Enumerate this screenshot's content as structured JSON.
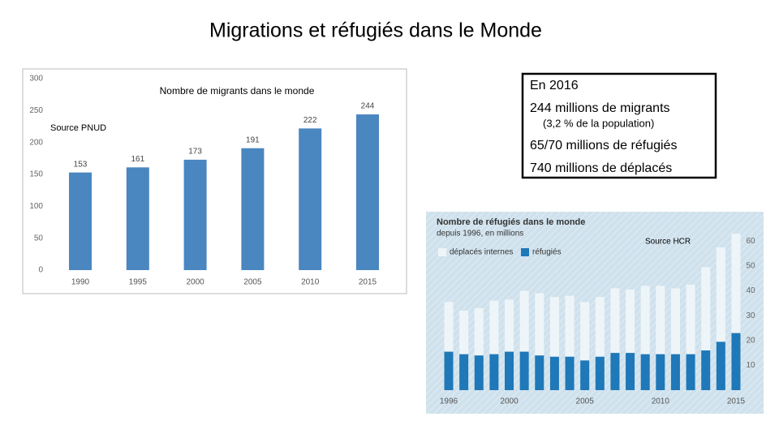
{
  "title": "Migrations et réfugiés dans le Monde",
  "text_box": {
    "heading": "En 2016",
    "lines": [
      "244 millions de migrants",
      "(3,2 % de la population)",
      "65/70 millions de réfugiés",
      "740 millions de déplacés"
    ]
  },
  "chart_data": [
    {
      "type": "bar",
      "title": "Nombre de migrants dans le monde",
      "annotation": "Source PNUD",
      "categories": [
        "1990",
        "1995",
        "2000",
        "2005",
        "2010",
        "2015"
      ],
      "values": [
        153,
        161,
        173,
        191,
        222,
        244
      ],
      "color": "#4a86c0",
      "ylim": [
        0,
        300
      ],
      "yticks": [
        0,
        50,
        100,
        150,
        200,
        250,
        300
      ],
      "grid": false
    },
    {
      "type": "stacked_bar",
      "title": "Nombre de réfugiés dans le monde",
      "subtitle": "depuis 1996, en millions",
      "annotation": "Source HCR",
      "categories": [
        "1996",
        null,
        null,
        null,
        "2000",
        null,
        null,
        null,
        null,
        "2005",
        null,
        null,
        null,
        null,
        "2010",
        null,
        null,
        null,
        null,
        "2015"
      ],
      "series": [
        {
          "name": "réfugiés",
          "color": "#1f78b8",
          "values": [
            15.5,
            14.5,
            14,
            14.5,
            15.5,
            15.5,
            14,
            13.5,
            13.5,
            12,
            13.5,
            15,
            15,
            14.5,
            14.5,
            14.5,
            14.5,
            16,
            19.5,
            23
          ]
        },
        {
          "name": "déplacés internes",
          "color": "#eef5f9",
          "values": [
            20,
            17.5,
            19,
            21.5,
            21,
            24.5,
            25,
            24,
            24.5,
            23.5,
            24,
            26,
            25.5,
            27.5,
            27.5,
            26.5,
            28,
            33.5,
            38,
            40
          ]
        }
      ],
      "ylim": [
        0,
        65
      ],
      "yticks": [
        10,
        20,
        30,
        40,
        50,
        60
      ],
      "y_axis_side": "right",
      "grid": false
    }
  ]
}
